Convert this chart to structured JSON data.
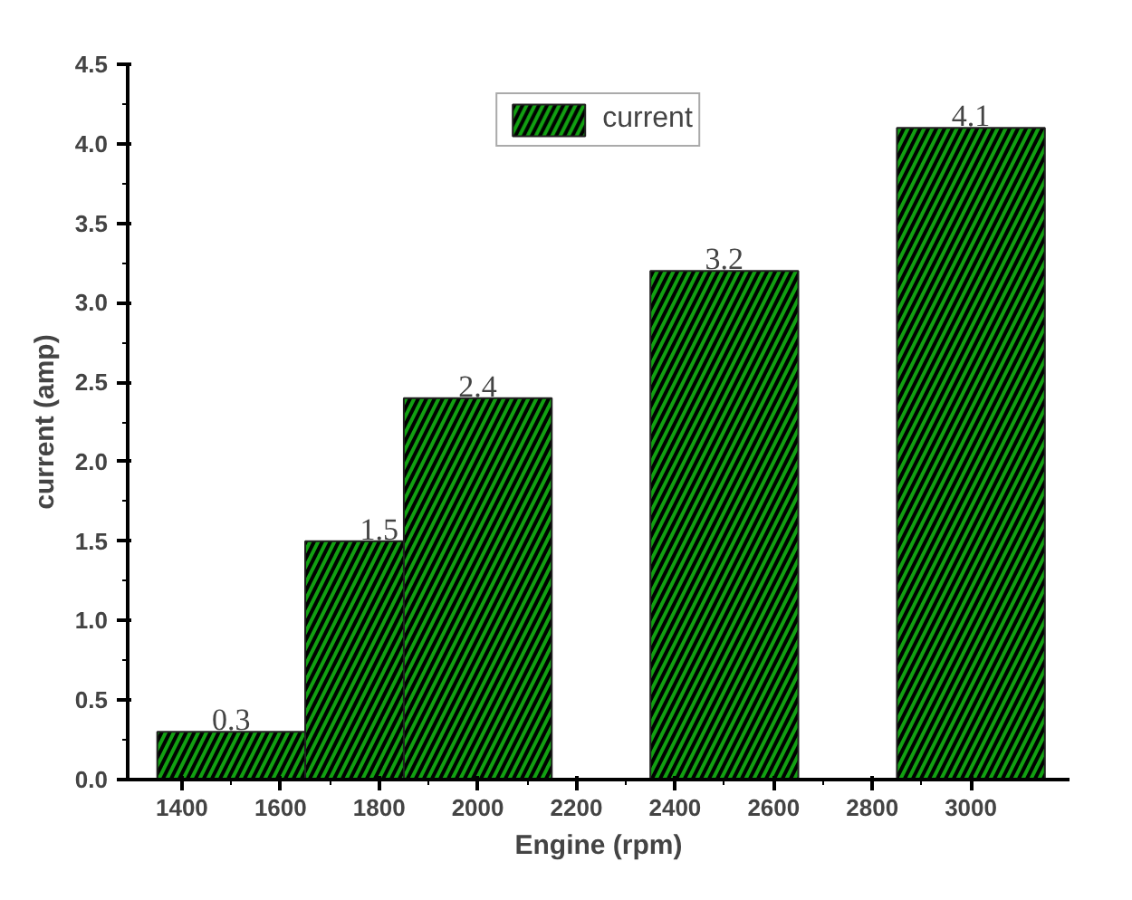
{
  "chart_data": {
    "type": "bar",
    "xlabel": "Engine (rpm)",
    "ylabel": "current (amp)",
    "x": [
      1500,
      1800,
      2000,
      2500,
      3000
    ],
    "series": [
      {
        "name": "current",
        "color": "#12a012",
        "values": [
          0.3,
          1.5,
          2.4,
          3.2,
          4.1
        ]
      }
    ],
    "xlim": [
      1290,
      3200
    ],
    "xticks": [
      1400,
      1600,
      1800,
      2000,
      2200,
      2400,
      2600,
      2800,
      3000
    ],
    "ylim": [
      0,
      4.5
    ],
    "yticks": [
      {
        "value": 0,
        "label": "0.0"
      },
      {
        "value": 0.5,
        "label": "0.5"
      },
      {
        "value": 1,
        "label": "1.0"
      },
      {
        "value": 1.5,
        "label": "1.5"
      },
      {
        "value": 2,
        "label": "2.0"
      },
      {
        "value": 2.5,
        "label": "2.5"
      },
      {
        "value": 3,
        "label": "3.0"
      },
      {
        "value": 3.5,
        "label": "3.5"
      },
      {
        "value": 4,
        "label": "4.0"
      },
      {
        "value": 4.5,
        "label": "4.5"
      }
    ],
    "data_labels": true,
    "legend": "top",
    "grid": false
  }
}
